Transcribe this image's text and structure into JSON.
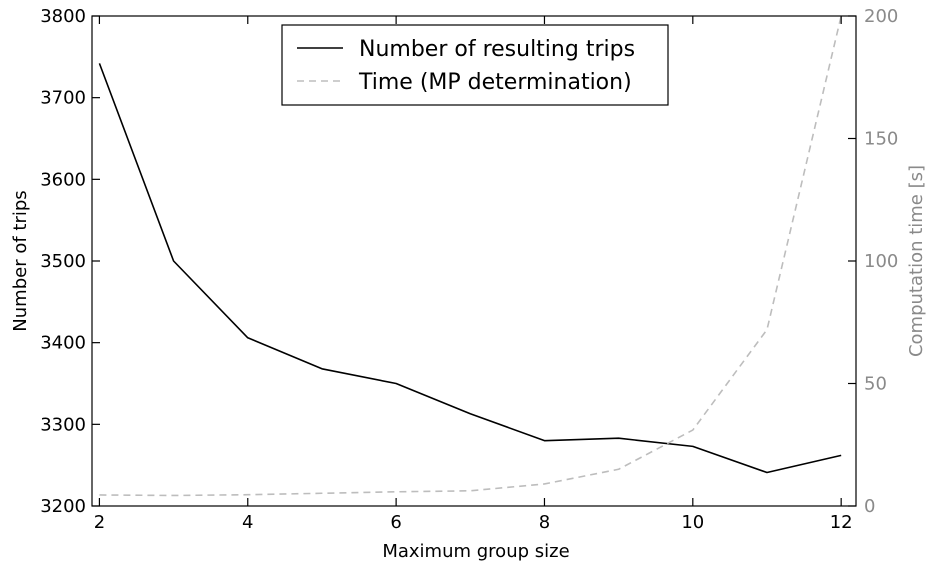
{
  "chart_data": {
    "type": "line",
    "x": [
      2,
      3,
      4,
      5,
      6,
      7,
      8,
      9,
      10,
      11,
      12
    ],
    "xlabel": "Maximum group size",
    "xlim": [
      1.9,
      12.2
    ],
    "xticks": [
      2,
      4,
      6,
      8,
      10,
      12
    ],
    "ylabel": "Number of trips",
    "ylim": [
      3200,
      3800
    ],
    "yticks": [
      3200,
      3300,
      3400,
      3500,
      3600,
      3700,
      3800
    ],
    "y2label": "Computation time [s]",
    "y2lim": [
      0,
      200
    ],
    "y2ticks": [
      0,
      50,
      100,
      150,
      200
    ],
    "series": [
      {
        "name": "Number of resulting trips",
        "axis": "left",
        "color": "#000000",
        "style": "solid",
        "values": [
          3742,
          3500,
          3406,
          3368,
          3350,
          3313,
          3280,
          3283,
          3273,
          3241,
          3262
        ]
      },
      {
        "name": "Time (MP determination)",
        "axis": "right",
        "color": "#bdbdbd",
        "style": "dashed",
        "values": [
          4.5,
          4.3,
          4.6,
          5.2,
          5.8,
          6.2,
          9,
          15,
          31,
          72,
          200
        ]
      }
    ],
    "legend_position": "top-center",
    "grid": false
  }
}
